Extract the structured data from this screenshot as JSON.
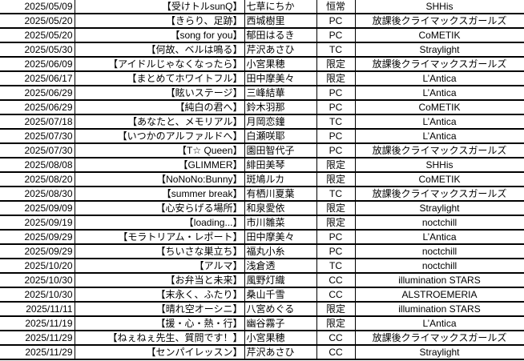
{
  "colors": {
    "background": "#ffffff",
    "grid_line": "#000000",
    "text": "#000000"
  },
  "table": {
    "semantic_columns": [
      "date",
      "title",
      "character",
      "type",
      "unit"
    ],
    "type_values_seen": [
      "恒常",
      "PC",
      "TC",
      "限定",
      "CC"
    ],
    "rows": [
      {
        "date": "2025/05/09",
        "title": "【受けトルsunQ】",
        "character": "七草にちか",
        "type": "恒常",
        "unit": "SHHis"
      },
      {
        "date": "2025/05/20",
        "title": "【きらり、足跡】",
        "character": "西城樹里",
        "type": "PC",
        "unit": "放課後クライマックスガールズ"
      },
      {
        "date": "2025/05/20",
        "title": "【song for you】",
        "character": "郁田はるき",
        "type": "PC",
        "unit": "CoMETIK"
      },
      {
        "date": "2025/05/30",
        "title": "【何故、ベルは鳴る】",
        "character": "芹沢あさひ",
        "type": "TC",
        "unit": "Straylight"
      },
      {
        "date": "2025/06/09",
        "title": "【アイドルじゃなくなったら】",
        "character": "小宮果穂",
        "type": "限定",
        "unit": "放課後クライマックスガールズ"
      },
      {
        "date": "2025/06/17",
        "title": "【まとめてホワイトフル】",
        "character": "田中摩美々",
        "type": "限定",
        "unit": "L’Antica"
      },
      {
        "date": "2025/06/29",
        "title": "【眩いステージ】",
        "character": "三峰結華",
        "type": "PC",
        "unit": "L’Antica"
      },
      {
        "date": "2025/06/29",
        "title": "【純白の君へ】",
        "character": "鈴木羽那",
        "type": "PC",
        "unit": "CoMETIK"
      },
      {
        "date": "2025/07/18",
        "title": "【あなたと、メモリアル】",
        "character": "月岡恋鐘",
        "type": "TC",
        "unit": "L’Antica"
      },
      {
        "date": "2025/07/30",
        "title": "【いつかのアルファルドへ】",
        "character": "白瀬咲耶",
        "type": "PC",
        "unit": "L’Antica"
      },
      {
        "date": "2025/07/30",
        "title": "【T☆ Queen】",
        "character": "園田智代子",
        "type": "PC",
        "unit": "放課後クライマックスガールズ"
      },
      {
        "date": "2025/08/08",
        "title": "【GLIMMER】",
        "character": "緋田美琴",
        "type": "限定",
        "unit": "SHHis"
      },
      {
        "date": "2025/08/20",
        "title": "【NoNoNo:Bunny】",
        "character": "斑鳩ルカ",
        "type": "限定",
        "unit": "CoMETIK"
      },
      {
        "date": "2025/08/30",
        "title": "【summer break】",
        "character": "有栖川夏葉",
        "type": "TC",
        "unit": "放課後クライマックスガールズ"
      },
      {
        "date": "2025/09/09",
        "title": "【心安らげる場所】",
        "character": "和泉愛依",
        "type": "限定",
        "unit": "Straylight"
      },
      {
        "date": "2025/09/19",
        "title": "【loading...】",
        "character": "市川雛菜",
        "type": "限定",
        "unit": "noctchill"
      },
      {
        "date": "2025/09/29",
        "title": "【モラトリアム・レポート】",
        "character": "田中摩美々",
        "type": "PC",
        "unit": "L’Antica"
      },
      {
        "date": "2025/09/29",
        "title": "【ちいさな巣立ち】",
        "character": "福丸小糸",
        "type": "PC",
        "unit": "noctchill"
      },
      {
        "date": "2025/10/20",
        "title": "【アルマ】",
        "character": "浅倉透",
        "type": "TC",
        "unit": "noctchill"
      },
      {
        "date": "2025/10/30",
        "title": "【お弁当と未来】",
        "character": "風野灯織",
        "type": "CC",
        "unit": "illumination STARS"
      },
      {
        "date": "2025/10/30",
        "title": "【末永く、ふたり】",
        "character": "桑山千雪",
        "type": "CC",
        "unit": "ALSTROEMERIA"
      },
      {
        "date": "2025/11/11",
        "title": "【晴れ空オーシニ】",
        "character": "八宮めぐる",
        "type": "限定",
        "unit": "illumination STARS"
      },
      {
        "date": "2025/11/19",
        "title": "【援・心・熱・行】",
        "character": "幽谷霧子",
        "type": "限定",
        "unit": "L’Antica"
      },
      {
        "date": "2025/11/29",
        "title": "【ねぇねぇ先生、質問です！】",
        "character": "小宮果穂",
        "type": "CC",
        "unit": "放課後クライマックスガールズ"
      },
      {
        "date": "2025/11/29",
        "title": "【センパイレッスン】",
        "character": "芹沢あさひ",
        "type": "CC",
        "unit": "Straylight"
      }
    ]
  }
}
